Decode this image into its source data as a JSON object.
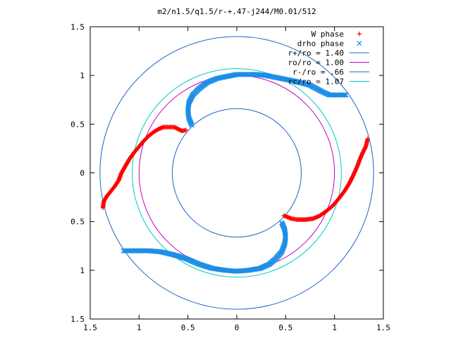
{
  "chart_data": {
    "type": "scatter",
    "title": "m2/n1.5/q1.5/r-+.47-j244/M0.01/512",
    "xlabel": "",
    "ylabel": "",
    "xlim": [
      -1.5,
      1.5
    ],
    "ylim": [
      -1.5,
      1.5
    ],
    "x_ticks": [
      -1.5,
      -1,
      -0.5,
      0,
      0.5,
      1,
      1.5
    ],
    "y_ticks": [
      -1.5,
      -1,
      -0.5,
      0,
      0.5,
      1,
      1.5
    ],
    "x_tick_labels": [
      "1.5",
      "1",
      "0.5",
      "0",
      "0.5",
      "1",
      "1.5"
    ],
    "y_tick_labels": [
      "1.5",
      "1",
      "0.5",
      "0",
      "0.5",
      "1",
      "1.5"
    ],
    "grid": false,
    "legend_position": "top-right",
    "series": [
      {
        "name": "W phase",
        "marker": "plus",
        "color": "#ff0000",
        "segments": [
          [
            [
              -1.37,
              -0.36
            ],
            [
              -1.36,
              -0.29
            ],
            [
              -1.33,
              -0.24
            ],
            [
              -1.29,
              -0.19
            ],
            [
              -1.25,
              -0.14
            ],
            [
              -1.21,
              -0.08
            ],
            [
              -1.18,
              0.0
            ],
            [
              -1.14,
              0.07
            ],
            [
              -1.1,
              0.14
            ],
            [
              -1.05,
              0.21
            ],
            [
              -1.0,
              0.27
            ],
            [
              -0.95,
              0.33
            ],
            [
              -0.9,
              0.38
            ],
            [
              -0.85,
              0.42
            ],
            [
              -0.8,
              0.45
            ],
            [
              -0.75,
              0.47
            ],
            [
              -0.7,
              0.47
            ],
            [
              -0.64,
              0.47
            ],
            [
              -0.6,
              0.45
            ],
            [
              -0.56,
              0.43
            ],
            [
              -0.52,
              0.44
            ]
          ],
          [
            [
              0.48,
              -0.44
            ],
            [
              0.51,
              -0.45
            ],
            [
              0.56,
              -0.47
            ],
            [
              0.62,
              -0.48
            ],
            [
              0.7,
              -0.48
            ],
            [
              0.78,
              -0.47
            ],
            [
              0.85,
              -0.44
            ],
            [
              0.92,
              -0.39
            ],
            [
              0.98,
              -0.34
            ],
            [
              1.04,
              -0.27
            ],
            [
              1.1,
              -0.19
            ],
            [
              1.15,
              -0.11
            ],
            [
              1.19,
              -0.03
            ],
            [
              1.23,
              0.06
            ],
            [
              1.26,
              0.14
            ],
            [
              1.29,
              0.21
            ],
            [
              1.32,
              0.27
            ],
            [
              1.33,
              0.31
            ],
            [
              1.34,
              0.35
            ]
          ]
        ]
      },
      {
        "name": "drho phase",
        "marker": "cross",
        "color": "#1e8ee8",
        "segments": [
          [
            [
              -0.46,
              0.49
            ],
            [
              -0.49,
              0.56
            ],
            [
              -0.5,
              0.64
            ],
            [
              -0.49,
              0.72
            ],
            [
              -0.45,
              0.8
            ],
            [
              -0.38,
              0.87
            ],
            [
              -0.3,
              0.93
            ],
            [
              -0.2,
              0.97
            ],
            [
              -0.1,
              0.99
            ],
            [
              0.0,
              1.01
            ],
            [
              0.1,
              1.01
            ],
            [
              0.2,
              1.01
            ],
            [
              0.3,
              1.0
            ],
            [
              0.45,
              0.97
            ],
            [
              0.6,
              0.94
            ],
            [
              0.75,
              0.9
            ],
            [
              0.88,
              0.83
            ],
            [
              0.95,
              0.8
            ],
            [
              1.05,
              0.8
            ],
            [
              1.12,
              0.8
            ]
          ],
          [
            [
              0.46,
              -0.51
            ],
            [
              0.49,
              -0.58
            ],
            [
              0.5,
              -0.66
            ],
            [
              0.49,
              -0.73
            ],
            [
              0.46,
              -0.81
            ],
            [
              0.4,
              -0.88
            ],
            [
              0.33,
              -0.94
            ],
            [
              0.24,
              -0.98
            ],
            [
              0.12,
              -1.0
            ],
            [
              0.0,
              -1.01
            ],
            [
              -0.12,
              -1.0
            ],
            [
              -0.25,
              -0.98
            ],
            [
              -0.38,
              -0.94
            ],
            [
              -0.52,
              -0.88
            ],
            [
              -0.65,
              -0.84
            ],
            [
              -0.78,
              -0.81
            ],
            [
              -0.9,
              -0.8
            ],
            [
              -1.02,
              -0.8
            ],
            [
              -1.16,
              -0.8
            ]
          ]
        ]
      },
      {
        "name": "r+/ro = 1.40",
        "type": "circle",
        "radius": 1.4,
        "color": "#1a66c2"
      },
      {
        "name": "ro/ro = 1.00",
        "type": "circle",
        "radius": 1.0,
        "color": "#c000c0"
      },
      {
        "name": "r-/ro = .66",
        "type": "circle",
        "radius": 0.66,
        "color": "#1a66c2"
      },
      {
        "name": "rc/ro = 1.07",
        "type": "circle",
        "radius": 1.07,
        "color": "#00c8c8"
      }
    ]
  }
}
